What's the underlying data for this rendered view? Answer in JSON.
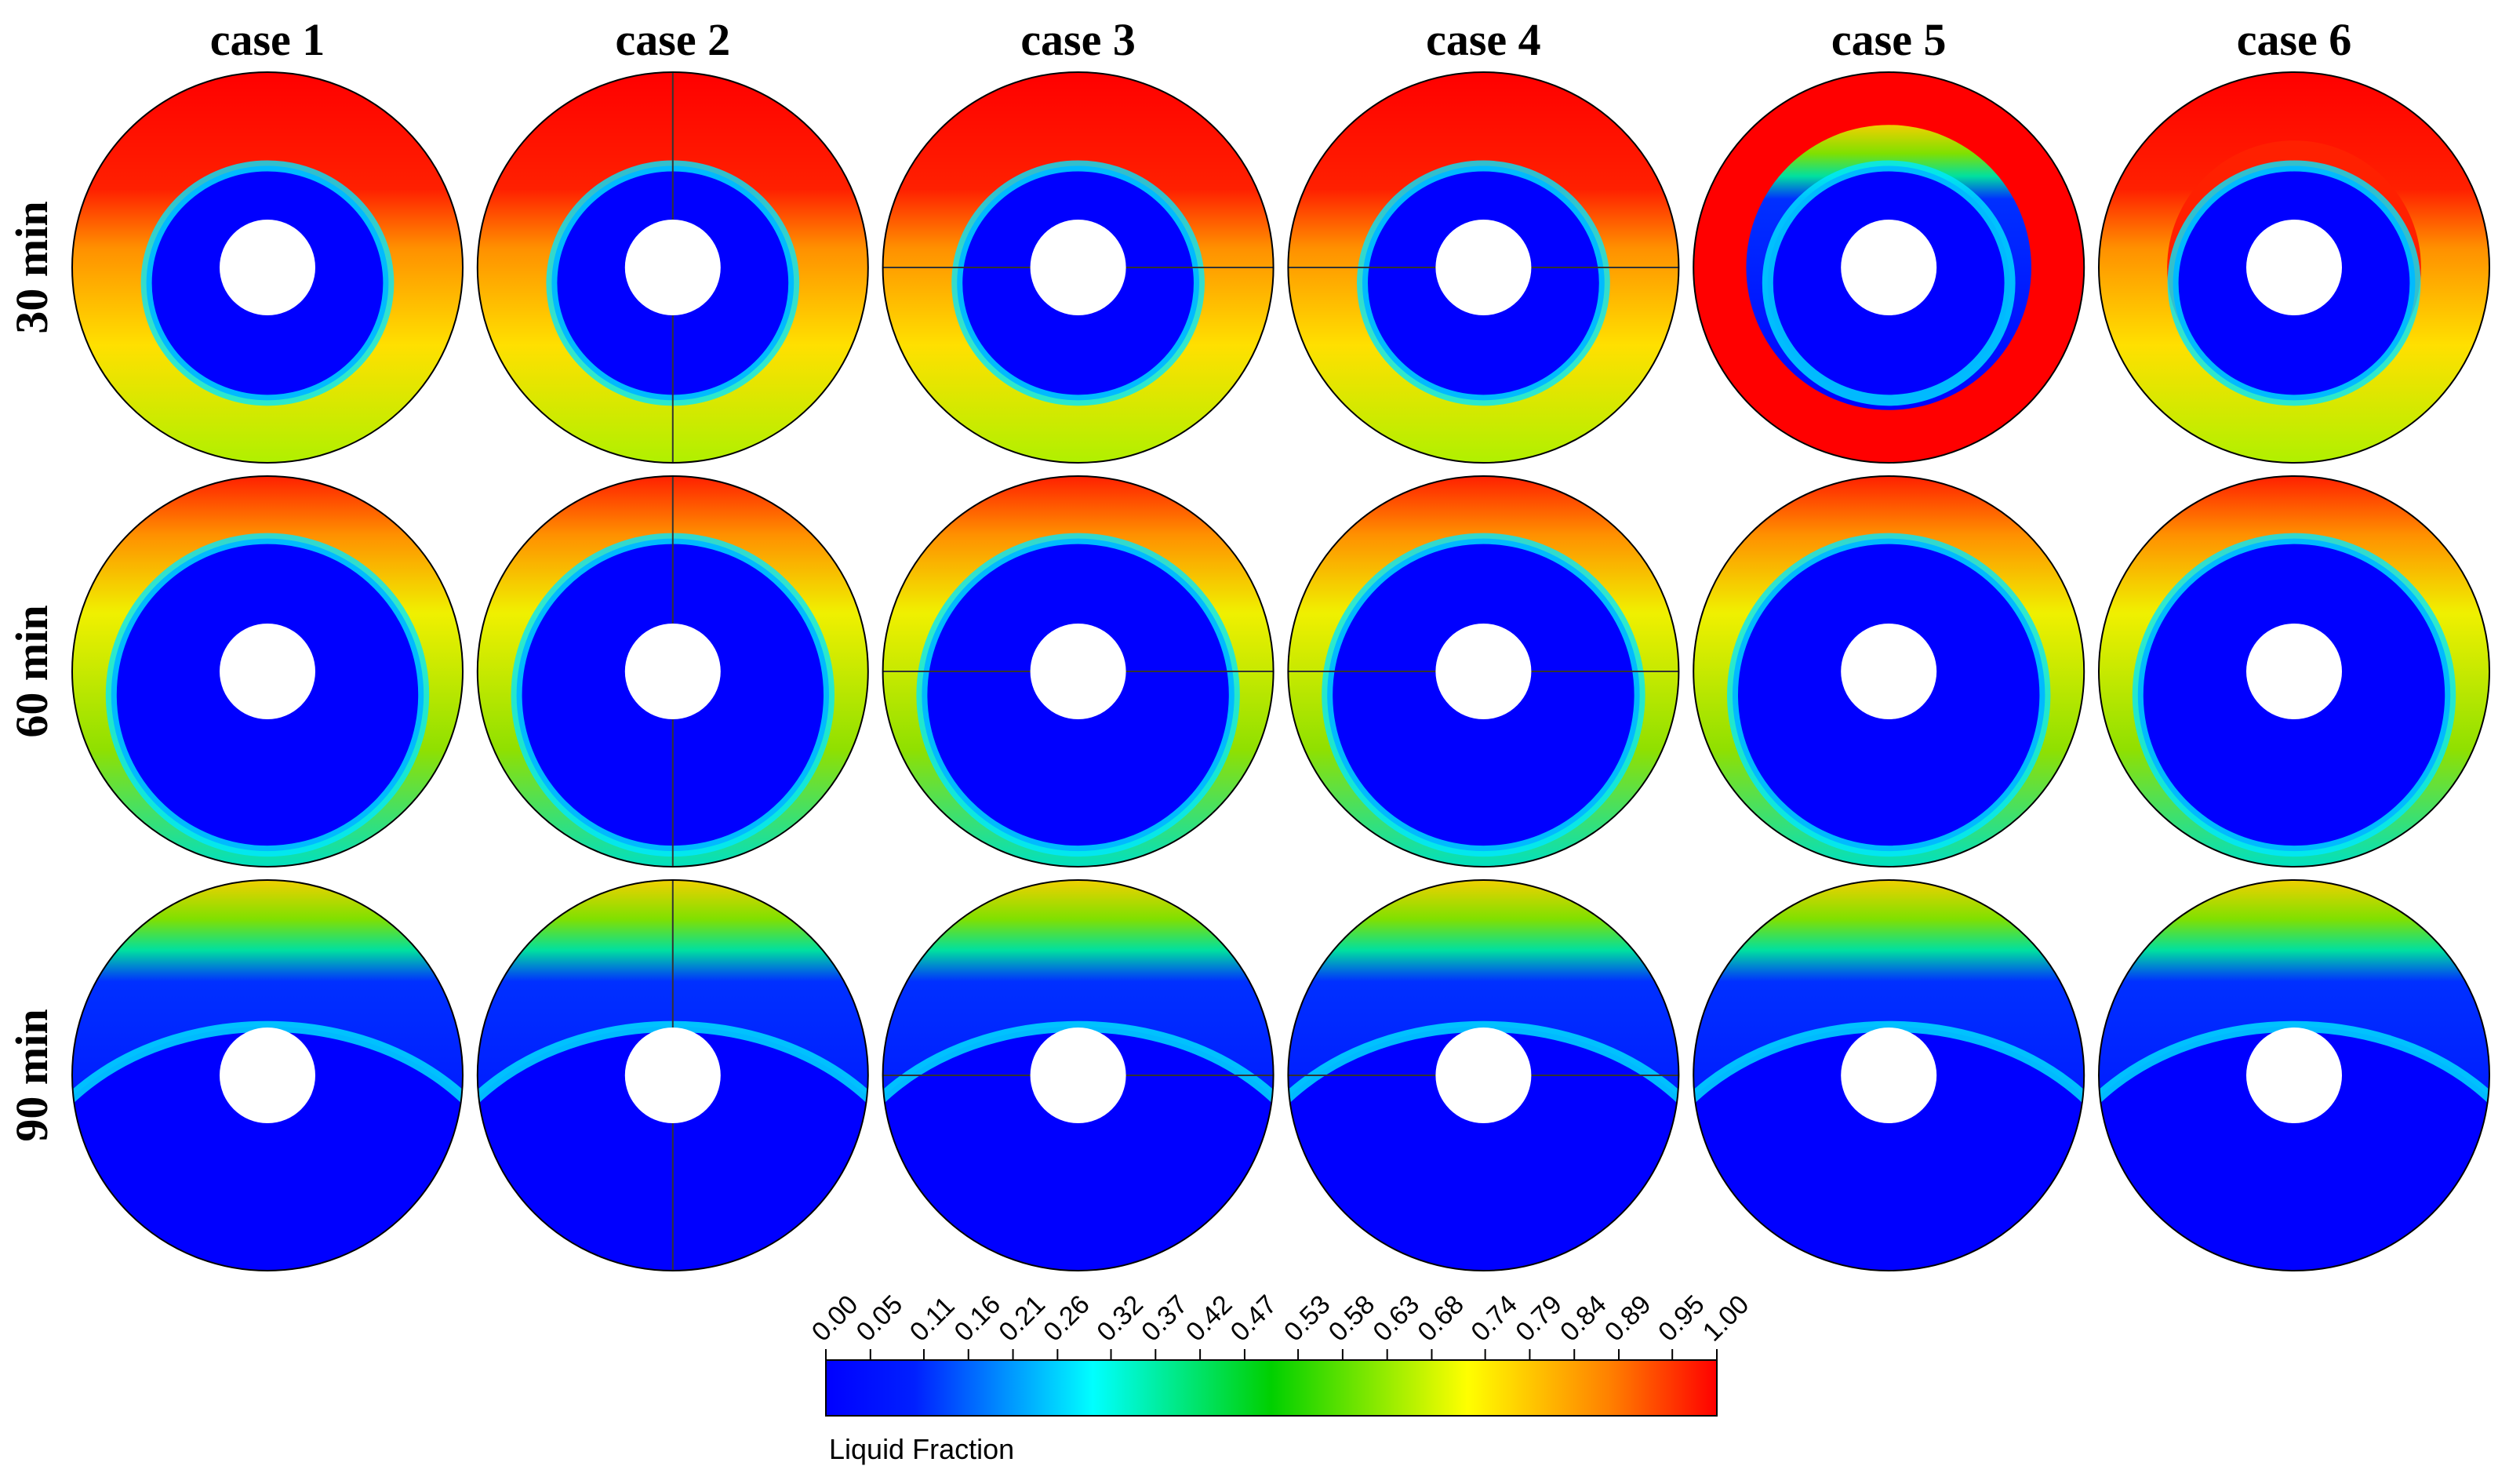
{
  "columns": [
    "case 1",
    "case 2",
    "case 3",
    "case 4",
    "case 5",
    "case 6"
  ],
  "rows": [
    "30 min",
    "60 min",
    "90 min"
  ],
  "colorbar": {
    "label": "Liquid Fraction",
    "range": [
      0,
      1
    ],
    "ticks": [
      {
        "value": 0,
        "label": "0.00"
      },
      0.05,
      0.11,
      0.16,
      0.21,
      0.26,
      0.32,
      0.37,
      0.42,
      0.47,
      0.53,
      0.58,
      0.63,
      0.68,
      0.74,
      0.79,
      0.84,
      0.89,
      0.95,
      {
        "value": 1,
        "label": "1.00"
      }
    ]
  }
}
